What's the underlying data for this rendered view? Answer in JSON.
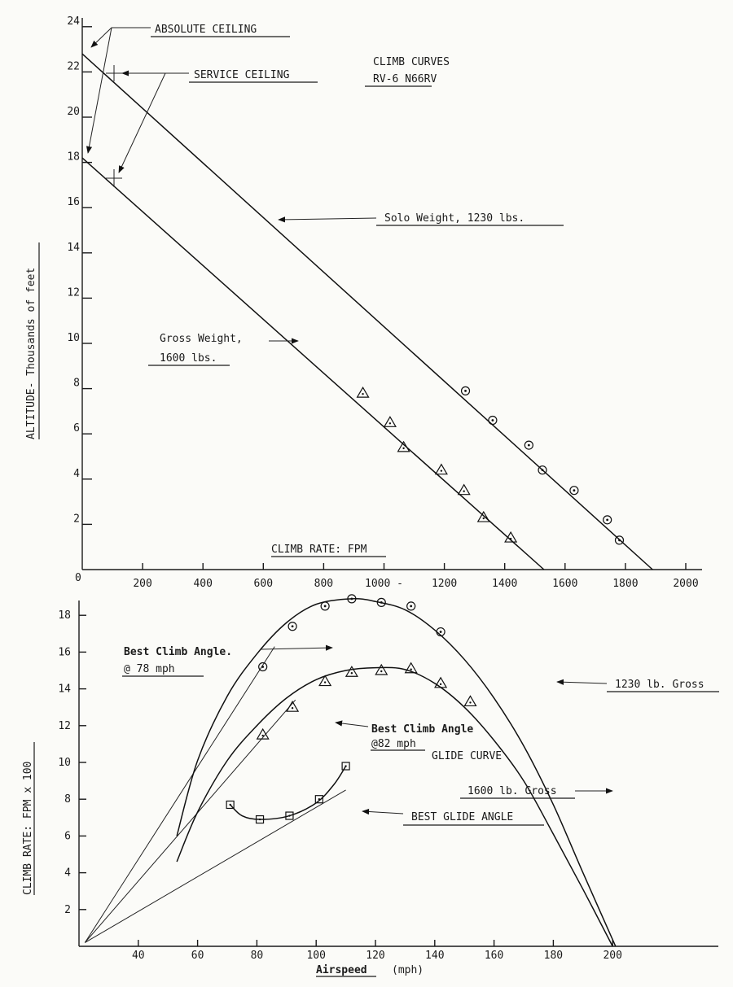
{
  "chart_data": [
    {
      "type": "line",
      "title": "CLIMB CURVES",
      "subtitle": "RV-6 N66RV",
      "xlabel": "CLIMB RATE: FPM",
      "ylabel": "ALTITUDE- Thousands of feet",
      "x_ticks": [
        "200",
        "400",
        "600",
        "800",
        "1000 -",
        "1200",
        "1400",
        "1600",
        "1800",
        "2000"
      ],
      "y_ticks": [
        "2",
        "4",
        "6",
        "8",
        "10",
        "12",
        "14",
        "16",
        "18",
        "20",
        "22",
        "24"
      ],
      "origin_label": "0",
      "xlim": [
        0,
        2000
      ],
      "ylim": [
        0,
        24
      ],
      "grid": false,
      "series": [
        {
          "name": "Solo Weight, 1230 lbs.",
          "marker": "circle",
          "line": [
            [
              0,
              22.8
            ],
            [
              1890,
              0
            ]
          ],
          "points": [
            [
              1270,
              7.9
            ],
            [
              1360,
              6.6
            ],
            [
              1480,
              5.5
            ],
            [
              1525,
              4.4
            ],
            [
              1630,
              3.5
            ],
            [
              1740,
              2.2
            ],
            [
              1780,
              1.3
            ]
          ]
        },
        {
          "name": "Gross Weight, 1600 lbs.",
          "marker": "triangle",
          "line": [
            [
              0,
              18.2
            ],
            [
              1530,
              0
            ]
          ],
          "points": [
            [
              930,
              7.8
            ],
            [
              1020,
              6.5
            ],
            [
              1065,
              5.4
            ],
            [
              1190,
              4.4
            ],
            [
              1265,
              3.5
            ],
            [
              1330,
              2.3
            ],
            [
              1420,
              1.4
            ]
          ]
        }
      ],
      "annotations": {
        "absolute_ceiling": "ABSOLUTE CEILING",
        "service_ceiling": "SERVICE CEILING",
        "solo_weight": "Solo Weight, 1230 lbs.",
        "gross_weight_line1": "Gross Weight,",
        "gross_weight_line2": "1600 lbs."
      }
    },
    {
      "type": "line",
      "xlabel": "Airspeed",
      "xlabel_unit": "(mph)",
      "ylabel": "CLIMB RATE: FPM x 100",
      "x_ticks": [
        "40",
        "60",
        "80",
        "100",
        "120",
        "140",
        "160",
        "180",
        "200"
      ],
      "y_ticks": [
        "2",
        "4",
        "6",
        "8",
        "10",
        "12",
        "14",
        "16",
        "18"
      ],
      "xlim": [
        20,
        210
      ],
      "ylim": [
        0,
        19
      ],
      "grid": false,
      "series": [
        {
          "name": "1230 lb. Gross",
          "marker": "circle",
          "curve": [
            [
              53,
              6.0
            ],
            [
              60,
              10.1
            ],
            [
              70,
              13.6
            ],
            [
              80,
              15.9
            ],
            [
              90,
              17.6
            ],
            [
              100,
              18.6
            ],
            [
              112,
              18.9
            ],
            [
              120,
              18.75
            ],
            [
              130,
              18.3
            ],
            [
              140,
              17.2
            ],
            [
              150,
              15.6
            ],
            [
              160,
              13.5
            ],
            [
              170,
              10.9
            ],
            [
              180,
              7.7
            ],
            [
              190,
              4.0
            ],
            [
              201,
              0
            ]
          ],
          "points": [
            [
              82,
              15.2
            ],
            [
              92,
              17.4
            ],
            [
              103,
              18.5
            ],
            [
              112,
              18.9
            ],
            [
              122,
              18.7
            ],
            [
              132,
              18.5
            ],
            [
              142,
              17.1
            ]
          ]
        },
        {
          "name": "1600 lb. Gross",
          "marker": "triangle",
          "curve": [
            [
              53,
              4.6
            ],
            [
              60,
              7.3
            ],
            [
              70,
              10.1
            ],
            [
              80,
              12.0
            ],
            [
              90,
              13.5
            ],
            [
              100,
              14.5
            ],
            [
              110,
              15.0
            ],
            [
              120,
              15.15
            ],
            [
              130,
              15.05
            ],
            [
              140,
              14.3
            ],
            [
              150,
              13.0
            ],
            [
              160,
              11.2
            ],
            [
              170,
              9.0
            ],
            [
              180,
              6.1
            ],
            [
              190,
              3.1
            ],
            [
              200,
              0
            ]
          ],
          "points": [
            [
              82,
              11.5
            ],
            [
              92,
              13.0
            ],
            [
              103,
              14.4
            ],
            [
              112,
              14.9
            ],
            [
              122,
              15.0
            ],
            [
              132,
              15.1
            ],
            [
              142,
              14.3
            ],
            [
              152,
              13.3
            ]
          ]
        },
        {
          "name": "GLIDE CURVE",
          "marker": "square",
          "curve": [
            [
              71,
              7.7
            ],
            [
              75,
              7.1
            ],
            [
              81,
              6.9
            ],
            [
              91,
              7.1
            ],
            [
              100,
              7.8
            ],
            [
              106,
              8.8
            ],
            [
              110,
              9.8
            ]
          ],
          "points": [
            [
              71,
              7.7
            ],
            [
              81,
              6.9
            ],
            [
              91,
              7.1
            ],
            [
              101,
              8.0
            ],
            [
              110,
              9.8
            ]
          ]
        }
      ],
      "tangent_lines": [
        {
          "from": [
            22,
            0.2
          ],
          "to": [
            86,
            16.3
          ]
        },
        {
          "from": [
            22,
            0.2
          ],
          "to": [
            93,
            13.4
          ]
        },
        {
          "from": [
            22,
            0.2
          ],
          "to": [
            110,
            8.5
          ]
        }
      ],
      "annotations": {
        "best_climb_78_line1": "Best Climb Angle.",
        "best_climb_78_line2": "@ 78 mph",
        "best_climb_82_line1": "Best Climb Angle",
        "best_climb_82_line2": "@82 mph",
        "glide_curve": "GLIDE CURVE",
        "best_glide": "BEST GLIDE ANGLE",
        "gross_1230": "1230 lb. Gross",
        "gross_1600": "1600 lb. Gross"
      }
    }
  ]
}
